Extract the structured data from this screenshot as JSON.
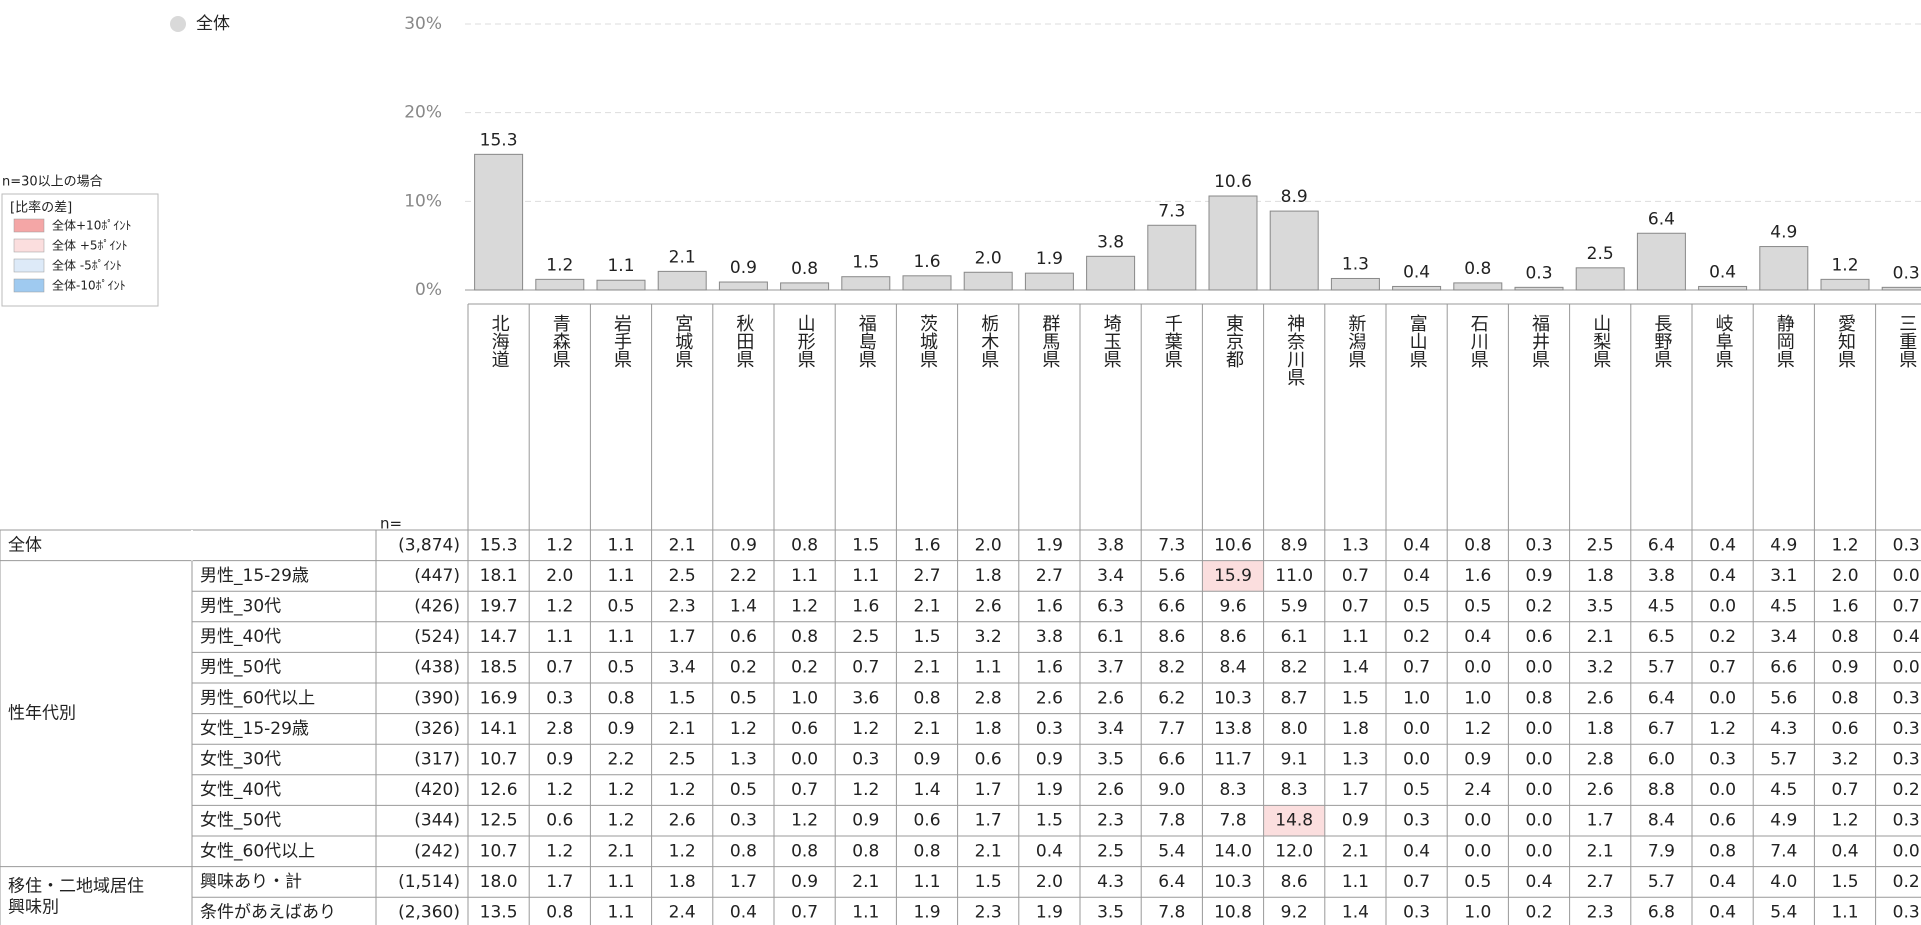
{
  "chart_data": {
    "type": "bar",
    "categories": [
      "北海道",
      "青森県",
      "岩手県",
      "宮城県",
      "秋田県",
      "山形県",
      "福島県",
      "茨城県",
      "栃木県",
      "群馬県",
      "埼玉県",
      "千葉県",
      "東京都",
      "神奈川県",
      "新潟県",
      "富山県",
      "石川県",
      "福井県",
      "山梨県",
      "長野県",
      "岐阜県",
      "静岡県",
      "愛知県",
      "三重県"
    ],
    "series": [
      {
        "name": "全体",
        "color": "#d9d9d9",
        "values": [
          15.3,
          1.2,
          1.1,
          2.1,
          0.9,
          0.8,
          1.5,
          1.6,
          2.0,
          1.9,
          3.8,
          7.3,
          10.6,
          8.9,
          1.3,
          0.4,
          0.8,
          0.3,
          2.5,
          6.4,
          0.4,
          4.9,
          1.2,
          0.3
        ],
        "value_labels": [
          "15.3",
          "1.2",
          "1.1",
          "2.1",
          "0.9",
          "0.8",
          "1.5",
          "1.6",
          "2.0",
          "1.9",
          "3.8",
          "7.3",
          "10.6",
          "8.9",
          "1.3",
          "0.4",
          "0.8",
          "0.3",
          "2.5",
          "6.4",
          "0.4",
          "4.9",
          "1.2",
          "0.3"
        ]
      }
    ],
    "ylim": [
      0,
      30
    ],
    "yticks": [
      {
        "value": 0,
        "label": "0%"
      },
      {
        "value": 10,
        "label": "10%"
      },
      {
        "value": 20,
        "label": "20%"
      },
      {
        "value": 30,
        "label": "30%"
      }
    ],
    "grid": true
  },
  "diff_legend": {
    "title": "n=30以上の場合",
    "subtitle": "[比率の差]",
    "entries": [
      {
        "label": "全体+10ﾎﾟｲﾝﾄ",
        "color": "#f4a6a6"
      },
      {
        "label": "全体 +5ﾎﾟｲﾝﾄ",
        "color": "#fbdede"
      },
      {
        "label": "全体 -5ﾎﾟｲﾝﾄ",
        "color": "#ddeaf8"
      },
      {
        "label": "全体-10ﾎﾟｲﾝﾄ",
        "color": "#9fcaf0"
      }
    ]
  },
  "table": {
    "n_header": "n=",
    "highlight_color": "#fbdede",
    "total": {
      "label": "全体",
      "n": "(3,874)",
      "cells": [
        "15.3",
        "1.2",
        "1.1",
        "2.1",
        "0.9",
        "0.8",
        "1.5",
        "1.6",
        "2.0",
        "1.9",
        "3.8",
        "7.3",
        "10.6",
        "8.9",
        "1.3",
        "0.4",
        "0.8",
        "0.3",
        "2.5",
        "6.4",
        "0.4",
        "4.9",
        "1.2",
        "0.3"
      ]
    },
    "groups": [
      {
        "name_lines": [
          "性年代別"
        ],
        "rows": [
          {
            "label": "男性_15-29歳",
            "n": "(447)",
            "cells": [
              "18.1",
              "2.0",
              "1.1",
              "2.5",
              "2.2",
              "1.1",
              "1.1",
              "2.7",
              "1.8",
              "2.7",
              "3.4",
              "5.6",
              "15.9",
              "11.0",
              "0.7",
              "0.4",
              "1.6",
              "0.9",
              "1.8",
              "3.8",
              "0.4",
              "3.1",
              "2.0",
              "0.0"
            ],
            "highlight": [
              12
            ]
          },
          {
            "label": "男性_30代",
            "n": "(426)",
            "cells": [
              "19.7",
              "1.2",
              "0.5",
              "2.3",
              "1.4",
              "1.2",
              "1.6",
              "2.1",
              "2.6",
              "1.6",
              "6.3",
              "6.6",
              "9.6",
              "5.9",
              "0.7",
              "0.5",
              "0.5",
              "0.2",
              "3.5",
              "4.5",
              "0.0",
              "4.5",
              "1.6",
              "0.7"
            ]
          },
          {
            "label": "男性_40代",
            "n": "(524)",
            "cells": [
              "14.7",
              "1.1",
              "1.1",
              "1.7",
              "0.6",
              "0.8",
              "2.5",
              "1.5",
              "3.2",
              "3.8",
              "6.1",
              "8.6",
              "8.6",
              "6.1",
              "1.1",
              "0.2",
              "0.4",
              "0.6",
              "2.1",
              "6.5",
              "0.2",
              "3.4",
              "0.8",
              "0.4"
            ]
          },
          {
            "label": "男性_50代",
            "n": "(438)",
            "cells": [
              "18.5",
              "0.7",
              "0.5",
              "3.4",
              "0.2",
              "0.2",
              "0.7",
              "2.1",
              "1.1",
              "1.6",
              "3.7",
              "8.2",
              "8.4",
              "8.2",
              "1.4",
              "0.7",
              "0.0",
              "0.0",
              "3.2",
              "5.7",
              "0.7",
              "6.6",
              "0.9",
              "0.0"
            ]
          },
          {
            "label": "男性_60代以上",
            "n": "(390)",
            "cells": [
              "16.9",
              "0.3",
              "0.8",
              "1.5",
              "0.5",
              "1.0",
              "3.6",
              "0.8",
              "2.8",
              "2.6",
              "2.6",
              "6.2",
              "10.3",
              "8.7",
              "1.5",
              "1.0",
              "1.0",
              "0.8",
              "2.6",
              "6.4",
              "0.0",
              "5.6",
              "0.8",
              "0.3"
            ]
          },
          {
            "label": "女性_15-29歳",
            "n": "(326)",
            "cells": [
              "14.1",
              "2.8",
              "0.9",
              "2.1",
              "1.2",
              "0.6",
              "1.2",
              "2.1",
              "1.8",
              "0.3",
              "3.4",
              "7.7",
              "13.8",
              "8.0",
              "1.8",
              "0.0",
              "1.2",
              "0.0",
              "1.8",
              "6.7",
              "1.2",
              "4.3",
              "0.6",
              "0.3"
            ]
          },
          {
            "label": "女性_30代",
            "n": "(317)",
            "cells": [
              "10.7",
              "0.9",
              "2.2",
              "2.5",
              "1.3",
              "0.0",
              "0.3",
              "0.9",
              "0.6",
              "0.9",
              "3.5",
              "6.6",
              "11.7",
              "9.1",
              "1.3",
              "0.0",
              "0.9",
              "0.0",
              "2.8",
              "6.0",
              "0.3",
              "5.7",
              "3.2",
              "0.3"
            ]
          },
          {
            "label": "女性_40代",
            "n": "(420)",
            "cells": [
              "12.6",
              "1.2",
              "1.2",
              "1.2",
              "0.5",
              "0.7",
              "1.2",
              "1.4",
              "1.7",
              "1.9",
              "2.6",
              "9.0",
              "8.3",
              "8.3",
              "1.7",
              "0.5",
              "2.4",
              "0.0",
              "2.6",
              "8.8",
              "0.0",
              "4.5",
              "0.7",
              "0.2"
            ]
          },
          {
            "label": "女性_50代",
            "n": "(344)",
            "cells": [
              "12.5",
              "0.6",
              "1.2",
              "2.6",
              "0.3",
              "1.2",
              "0.9",
              "0.6",
              "1.7",
              "1.5",
              "2.3",
              "7.8",
              "7.8",
              "14.8",
              "0.9",
              "0.3",
              "0.0",
              "0.0",
              "1.7",
              "8.4",
              "0.6",
              "4.9",
              "1.2",
              "0.3"
            ],
            "highlight": [
              13
            ]
          },
          {
            "label": "女性_60代以上",
            "n": "(242)",
            "cells": [
              "10.7",
              "1.2",
              "2.1",
              "1.2",
              "0.8",
              "0.8",
              "0.8",
              "0.8",
              "2.1",
              "0.4",
              "2.5",
              "5.4",
              "14.0",
              "12.0",
              "2.1",
              "0.4",
              "0.0",
              "0.0",
              "2.1",
              "7.9",
              "0.8",
              "7.4",
              "0.4",
              "0.0"
            ]
          }
        ]
      },
      {
        "name_lines": [
          "移住・二地域居住",
          "興味別"
        ],
        "rows": [
          {
            "label": "興味あり・計",
            "n": "(1,514)",
            "cells": [
              "18.0",
              "1.7",
              "1.1",
              "1.8",
              "1.7",
              "0.9",
              "2.1",
              "1.1",
              "1.5",
              "2.0",
              "4.3",
              "6.4",
              "10.3",
              "8.6",
              "1.1",
              "0.7",
              "0.5",
              "0.4",
              "2.7",
              "5.7",
              "0.4",
              "4.0",
              "1.5",
              "0.2"
            ]
          },
          {
            "label": "条件があえばあり",
            "n": "(2,360)",
            "cells": [
              "13.5",
              "0.8",
              "1.1",
              "2.4",
              "0.4",
              "0.7",
              "1.1",
              "1.9",
              "2.3",
              "1.9",
              "3.5",
              "7.8",
              "10.8",
              "9.2",
              "1.4",
              "0.3",
              "1.0",
              "0.2",
              "2.3",
              "6.8",
              "0.4",
              "5.4",
              "1.1",
              "0.3"
            ]
          }
        ]
      }
    ]
  }
}
